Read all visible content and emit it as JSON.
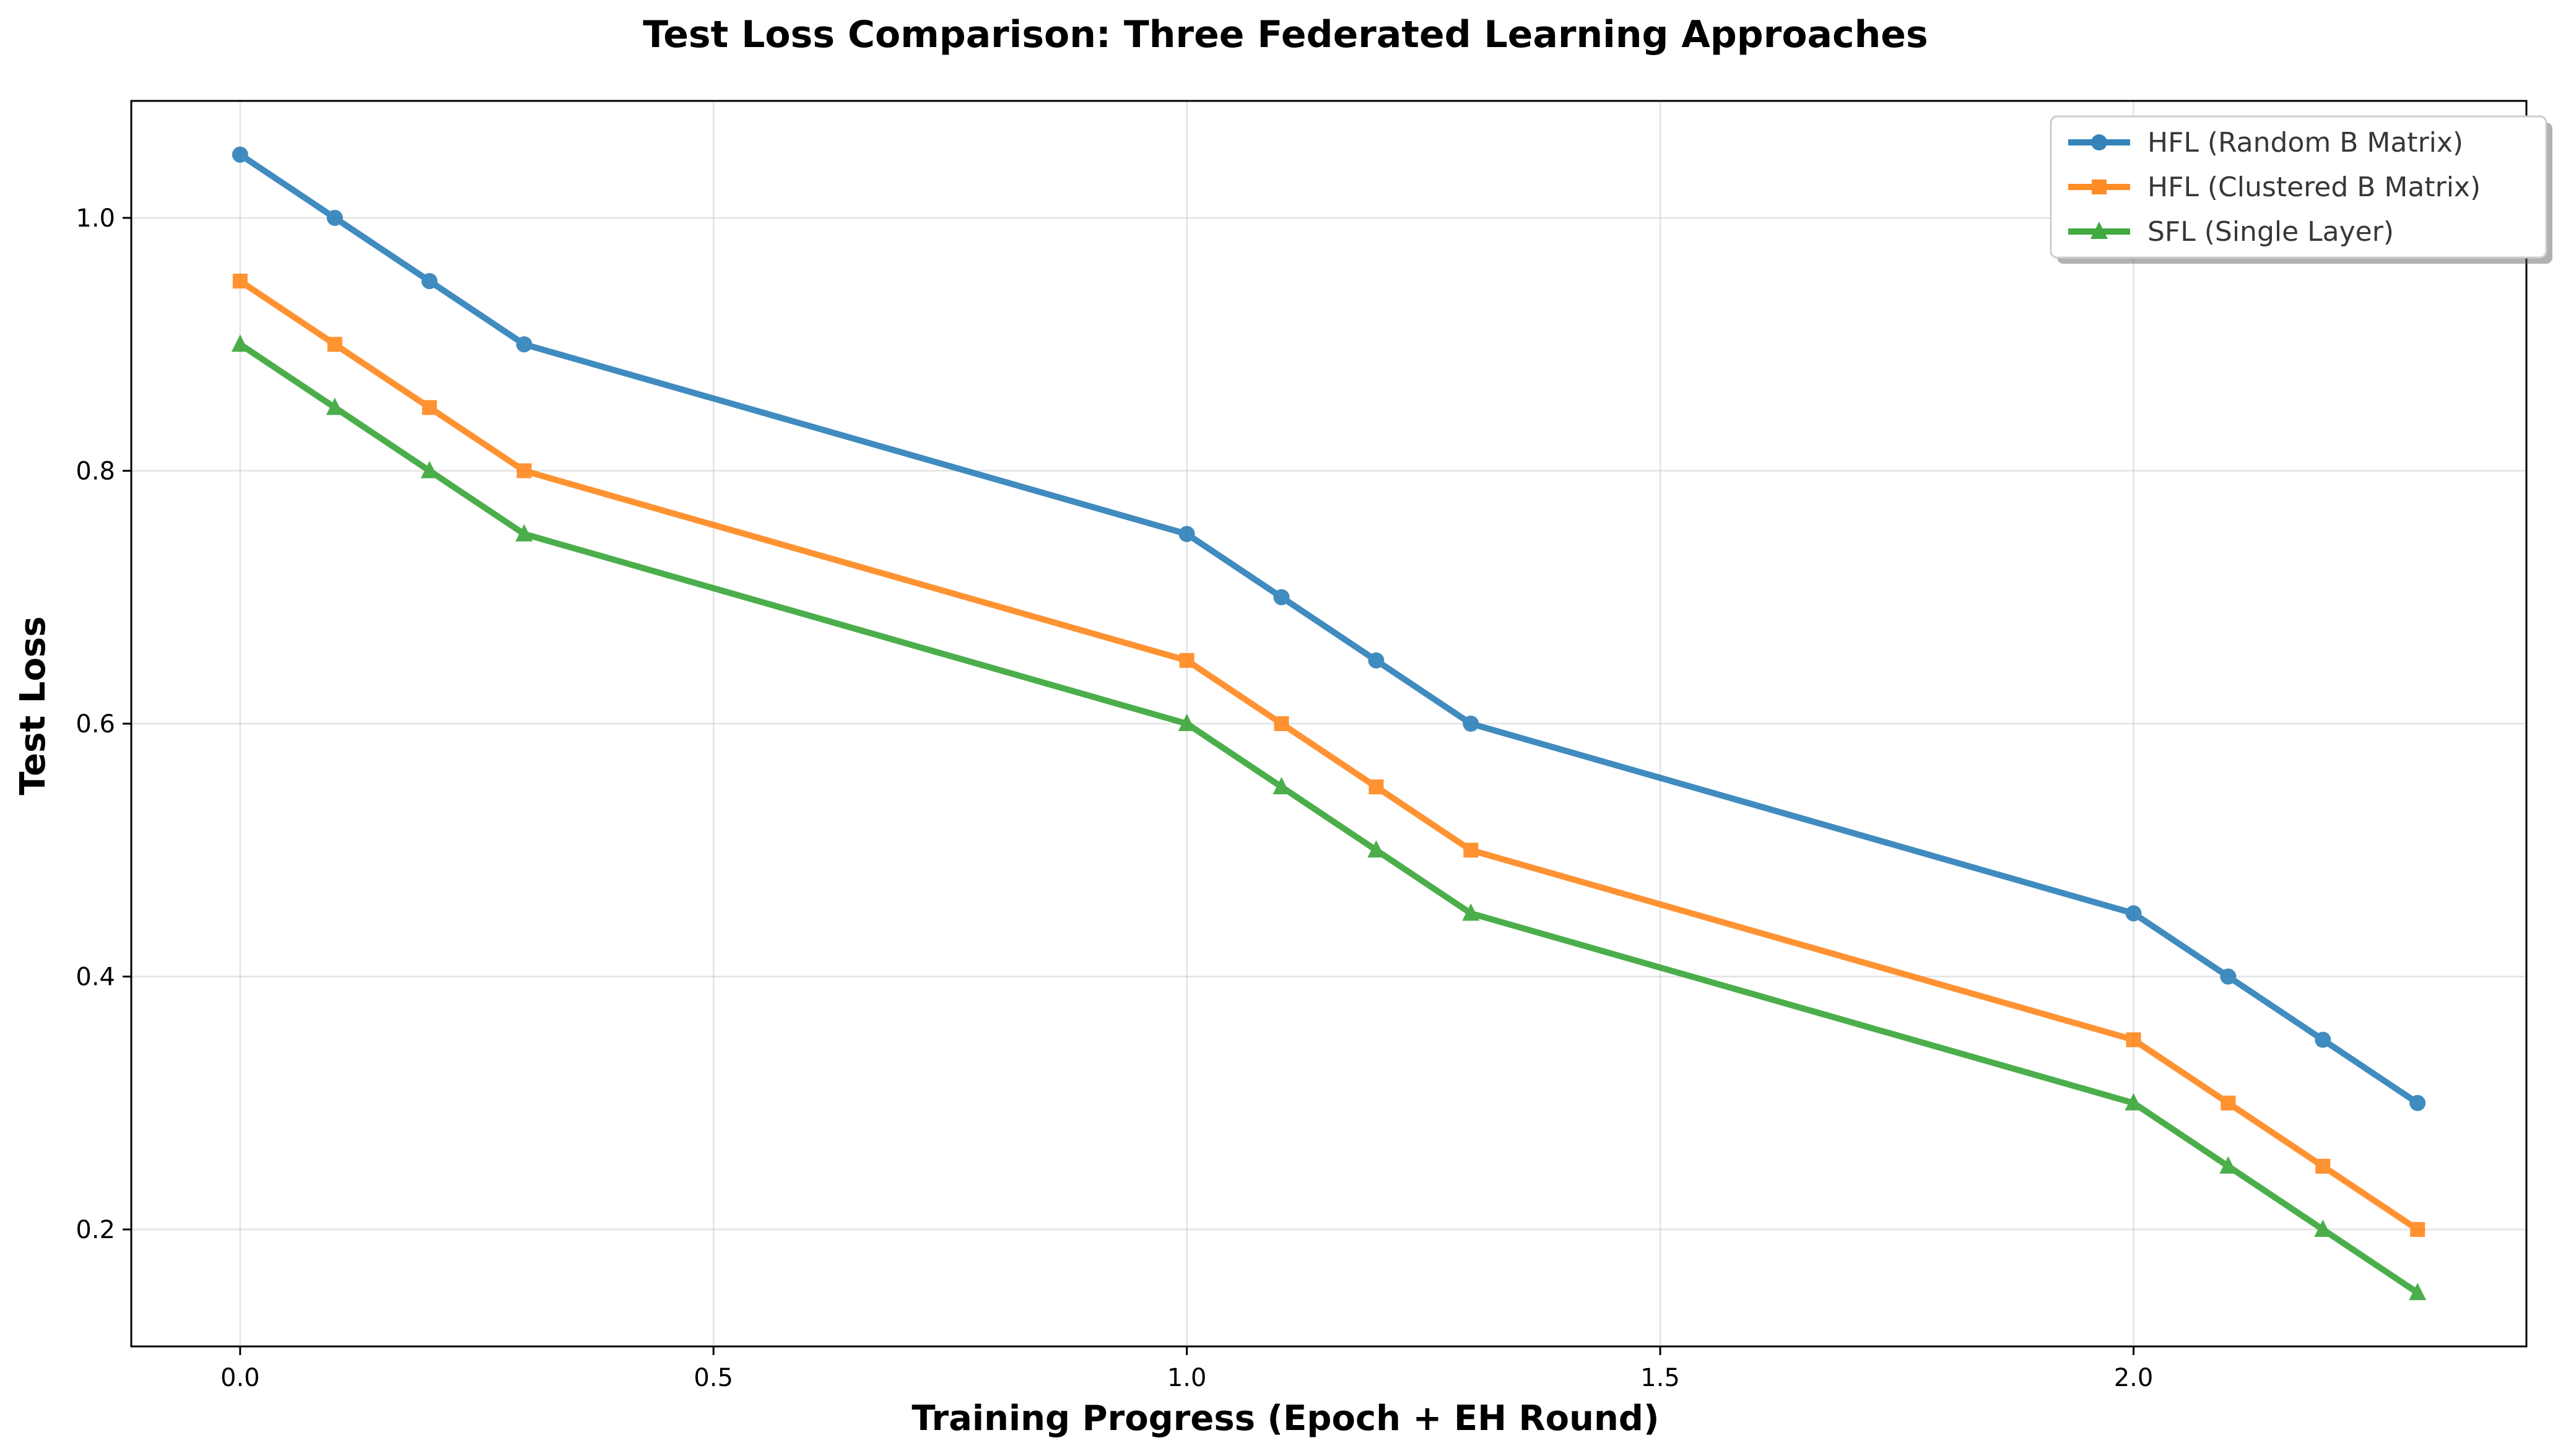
{
  "chart_data": {
    "type": "line",
    "title": "Test Loss Comparison: Three Federated Learning Approaches",
    "xlabel": "Training Progress (Epoch + EH Round)",
    "ylabel": "Test Loss",
    "xlim": [
      -0.115,
      2.415
    ],
    "ylim": [
      0.1075,
      1.0925
    ],
    "xticks": [
      0.0,
      0.5,
      1.0,
      1.5,
      2.0
    ],
    "xtick_labels": [
      "0.0",
      "0.5",
      "1.0",
      "1.5",
      "2.0"
    ],
    "yticks": [
      0.2,
      0.4,
      0.6,
      0.8,
      1.0
    ],
    "ytick_labels": [
      "0.2",
      "0.4",
      "0.6",
      "0.8",
      "1.0"
    ],
    "grid": true,
    "legend_position": "top-right",
    "x": [
      0.0,
      0.1,
      0.2,
      0.3,
      1.0,
      1.1,
      1.2,
      1.3,
      2.0,
      2.1,
      2.2,
      2.3
    ],
    "series": [
      {
        "name": "HFL (Random B Matrix)",
        "color": "#1f77b4",
        "marker": "circle",
        "values": [
          1.05,
          1.0,
          0.95,
          0.9,
          0.75,
          0.7,
          0.65,
          0.6,
          0.45,
          0.4,
          0.35,
          0.3
        ]
      },
      {
        "name": "HFL (Clustered B Matrix)",
        "color": "#ff7f0e",
        "marker": "square",
        "values": [
          0.95,
          0.9,
          0.85,
          0.8,
          0.65,
          0.6,
          0.55,
          0.5,
          0.35,
          0.3,
          0.25,
          0.2
        ]
      },
      {
        "name": "SFL (Single Layer)",
        "color": "#2ca02c",
        "marker": "triangle",
        "values": [
          0.9,
          0.85,
          0.8,
          0.75,
          0.6,
          0.55,
          0.5,
          0.45,
          0.3,
          0.25,
          0.2,
          0.15
        ]
      }
    ]
  }
}
